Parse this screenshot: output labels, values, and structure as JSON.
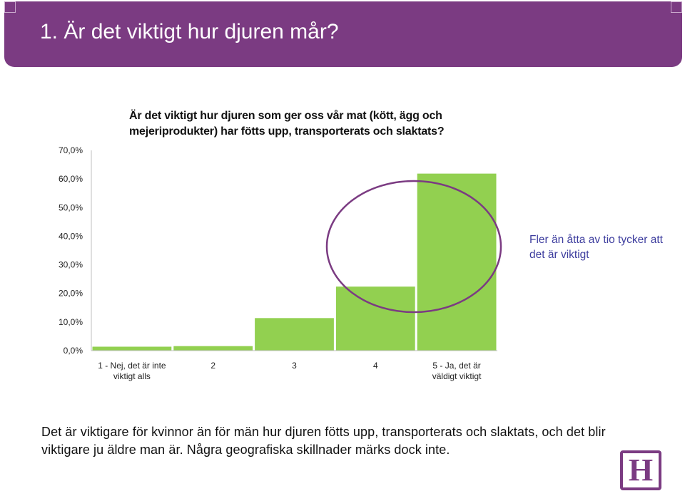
{
  "header": {
    "title": "1. Är det viktigt hur djuren mår?"
  },
  "colors": {
    "header_bg": "#7b3b82",
    "bar": "#92d050",
    "highlight_ellipse": "#7b3b82",
    "callout_text": "#3d3d9e"
  },
  "chart_data": {
    "type": "bar",
    "title_lines": [
      "Är det viktigt hur djuren som ger oss vår mat (kött, ägg och",
      "mejeriprodukter) har fötts upp, transporterats och slaktats?"
    ],
    "categories": [
      [
        "1 - Nej, det är inte",
        "viktigt alls"
      ],
      [
        "2"
      ],
      [
        "3"
      ],
      [
        "4"
      ],
      [
        "5 - Ja, det är",
        "väldigt viktigt"
      ]
    ],
    "values": [
      1.5,
      1.7,
      11.5,
      22.5,
      62.0
    ],
    "ylim": [
      0,
      70
    ],
    "yticks": [
      "0,0%",
      "10,0%",
      "20,0%",
      "30,0%",
      "40,0%",
      "50,0%",
      "60,0%",
      "70,0%"
    ],
    "xlabel": "",
    "ylabel": "",
    "grid": false,
    "highlight": "categories 4 and 5 circled"
  },
  "callout": {
    "text": "Fler än åtta av tio tycker att det är viktigt"
  },
  "footer": {
    "text": "Det är viktigare för kvinnor än för män hur djuren fötts upp, transporterats och slaktats, och det blir viktigare ju äldre man är. Några geografiska skillnader märks dock inte."
  },
  "logo": {
    "letter": "H"
  }
}
